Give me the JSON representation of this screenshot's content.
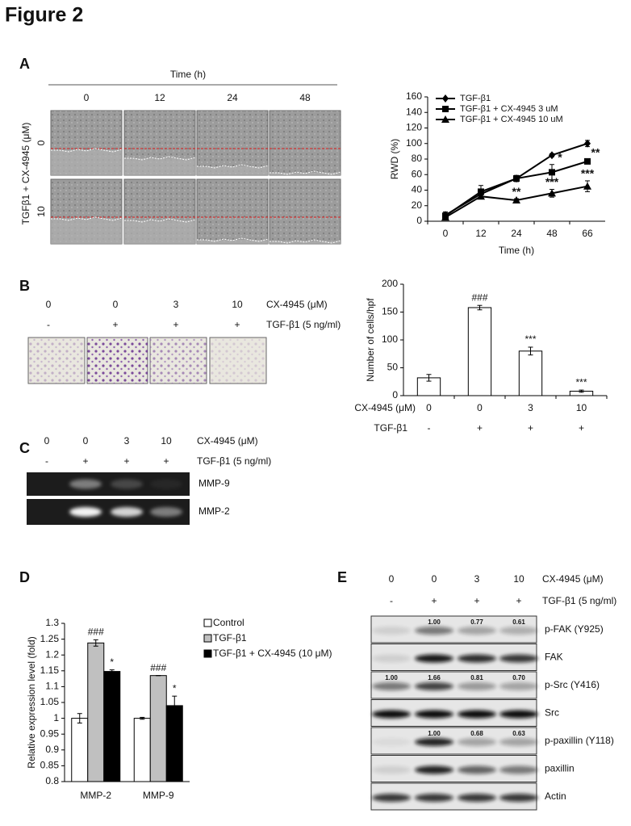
{
  "title": "Figure 2",
  "panel_a": {
    "label": "A",
    "time_label": "Time (h)",
    "times": [
      "0",
      "12",
      "24",
      "48"
    ],
    "row_title": "TGFβ1 + CX-4945 (μM)",
    "rows": [
      "0",
      "10"
    ]
  },
  "panel_b": {
    "label": "B",
    "doses": [
      "0",
      "0",
      "3",
      "10"
    ],
    "dose_label": "CX-4945 (μM)",
    "tgf": [
      "-",
      "+",
      "+",
      "+"
    ],
    "tgf_label": "TGF-β1 (5 ng/ml)"
  },
  "panel_c": {
    "label": "C",
    "doses": [
      "0",
      "0",
      "3",
      "10"
    ],
    "dose_label": "CX-4945 (μM)",
    "tgf": [
      "-",
      "+",
      "+",
      "+"
    ],
    "tgf_label": "TGF-β1 (5 ng/ml)",
    "bands": [
      "MMP-9",
      "MMP-2"
    ]
  },
  "panel_d": {
    "label": "D"
  },
  "panel_e": {
    "label": "E",
    "doses": [
      "0",
      "0",
      "3",
      "10"
    ],
    "dose_label": "CX-4945 (μM)",
    "tgf": [
      "-",
      "+",
      "+",
      "+"
    ],
    "tgf_label": "TGF-β1 (5 ng/ml)",
    "blots": [
      {
        "name": "p-FAK (Y925)",
        "quant": [
          null,
          "1.00",
          "0.77",
          "0.61"
        ]
      },
      {
        "name": "FAK"
      },
      {
        "name": "p-Src (Y416)",
        "quant": [
          "1.00",
          "1.66",
          "0.81",
          "0.70"
        ]
      },
      {
        "name": "Src"
      },
      {
        "name": "p-paxillin (Y118)",
        "quant": [
          null,
          "1.00",
          "0.68",
          "0.63"
        ]
      },
      {
        "name": "paxillin"
      },
      {
        "name": "Actin"
      }
    ]
  },
  "chart_data": [
    {
      "type": "line",
      "x_label": "Time (h)",
      "y_label": "RWD (%)",
      "categories": [
        "0",
        "12",
        "24",
        "48",
        "66"
      ],
      "ylim": [
        0,
        160
      ],
      "yticks": [
        0,
        20,
        40,
        60,
        80,
        100,
        120,
        140,
        160
      ],
      "legend": "top-left",
      "series": [
        {
          "name": "TGF-β1",
          "color": "#000000",
          "marker": "diamond",
          "values": [
            8,
            35,
            55,
            85,
            100
          ],
          "errors": [
            4,
            3,
            3,
            2,
            4
          ]
        },
        {
          "name": "TGF-β1 + CX-4945 3 uM",
          "color": "#000000",
          "marker": "square",
          "values": [
            7,
            38,
            55,
            63,
            77
          ],
          "errors": [
            3,
            8,
            4,
            10,
            2
          ],
          "significance": [
            null,
            null,
            null,
            "*",
            "**"
          ]
        },
        {
          "name": "TGF-β1 + CX-4945 10 uM",
          "color": "#000000",
          "marker": "triangle",
          "values": [
            5,
            32,
            27,
            36,
            45
          ],
          "errors": [
            2,
            3,
            2,
            5,
            7
          ],
          "significance": [
            null,
            null,
            "**",
            "***",
            "***"
          ]
        }
      ]
    },
    {
      "type": "bar",
      "y_label": "Number of cells/hpf",
      "categories": [
        "0",
        "0",
        "3",
        "10"
      ],
      "categories2": [
        "-",
        "+",
        "+",
        "+"
      ],
      "category_labels": [
        "CX-4945 (μM)",
        "TGF-β1"
      ],
      "values": [
        32,
        158,
        80,
        8
      ],
      "errors": [
        6,
        4,
        7,
        2
      ],
      "significance": [
        null,
        "###",
        "***",
        "***"
      ],
      "color": "#ffffff",
      "ylim": [
        0,
        200
      ],
      "yticks": [
        0,
        50,
        100,
        150,
        200
      ]
    },
    {
      "type": "grouped_bar",
      "y_label": "Relative expression level (fold)",
      "categories": [
        "MMP-2",
        "MMP-9"
      ],
      "ylim": [
        0.8,
        1.3
      ],
      "yticks": [
        0.8,
        0.85,
        0.9,
        0.95,
        1,
        1.05,
        1.1,
        1.15,
        1.2,
        1.25,
        1.3
      ],
      "legend": "right",
      "series": [
        {
          "name": "Control",
          "color": "#ffffff",
          "values": [
            1.0,
            1.0
          ],
          "errors": [
            0.015,
            0.003
          ]
        },
        {
          "name": "TGF-β1",
          "color": "#c0c0c0",
          "values": [
            1.238,
            1.135
          ],
          "errors": [
            0.01,
            0
          ],
          "significance": [
            "###",
            "###"
          ]
        },
        {
          "name": "TGF-β1 + CX-4945 (10 μM)",
          "color": "#000000",
          "values": [
            1.148,
            1.04
          ],
          "errors": [
            0.005,
            0.03
          ],
          "significance": [
            "*",
            "*"
          ]
        }
      ]
    }
  ]
}
